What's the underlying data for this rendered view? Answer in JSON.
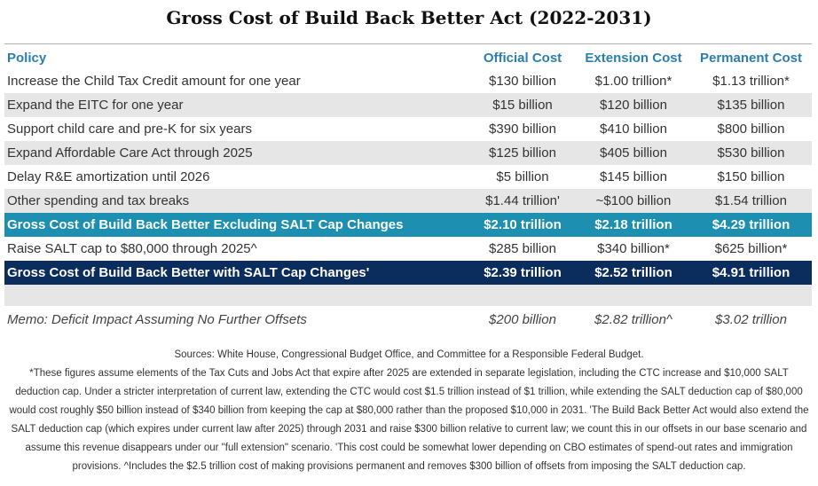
{
  "title": "Gross Cost of Build Back Better Act (2022-2031)",
  "headers": [
    "Policy",
    "Official Cost",
    "Extension Cost",
    "Permanent Cost"
  ],
  "rows": [
    {
      "style": "plain",
      "cells": [
        "Increase the Child Tax Credit amount for one year",
        "$130 billion",
        "$1.00 trillion*",
        "$1.13 trillion*"
      ]
    },
    {
      "style": "shade",
      "cells": [
        "Expand the EITC for one year",
        "$15 billion",
        "$120 billion",
        "$135 billion"
      ]
    },
    {
      "style": "plain",
      "cells": [
        "Support child care and pre-K for six years",
        "$390 billion",
        "$410 billion",
        "$800 billion"
      ]
    },
    {
      "style": "shade",
      "cells": [
        "Expand Affordable Care Act through 2025",
        "$125 billion",
        "$405 billion",
        "$530 billion"
      ]
    },
    {
      "style": "plain",
      "cells": [
        "Delay R&E amortization until 2026",
        "$5 billion",
        "$145 billion",
        "$150 billion"
      ]
    },
    {
      "style": "shade",
      "cells": [
        "Other spending and tax breaks",
        "$1.44 trillion'",
        "~$100 billion",
        "$1.54 trillion"
      ]
    },
    {
      "style": "teal",
      "cells": [
        "Gross Cost of Build Back Better Excluding SALT Cap Changes",
        "$2.10 trillion",
        "$2.18 trillion",
        "$4.29 trillion"
      ]
    },
    {
      "style": "plain",
      "cells": [
        "Raise SALT cap to $80,000 through 2025^",
        "$285 billion",
        "$340 billion*",
        "$625 billion*"
      ]
    },
    {
      "style": "navy",
      "cells": [
        "Gross Cost of Build Back Better with SALT Cap Changes'",
        "$2.39 trillion",
        "$2.52 trillion",
        "$4.91 trillion"
      ]
    }
  ],
  "memo": [
    "Memo: Deficit Impact Assuming No Further Offsets",
    "$200 billion",
    "$2.82 trillion^",
    "$3.02 trillion"
  ],
  "sources": "Sources: White House, Congressional Budget Office, and Committee for a Responsible Federal Budget.",
  "footnote": "*These figures assume elements of the Tax Cuts and Jobs Act that expire after 2025 are extended in separate legislation, including the CTC increase and $10,000 SALT deduction cap. Under a stricter interpretation of current law, extending the CTC would cost $1.5 trillion instead of $1 trillion, while extending the SALT deduction cap of $80,000 would cost roughly $50 billion instead of $340 billion from keeping the cap at $80,000 rather than the proposed $10,000 in 2031. 'The Build Back Better Act would also extend the SALT deduction cap (which expires under current law after 2025) through 2031 and raise $300 billion relative to current law; we count this in our offsets in our base scenario and assume this revenue disappears under our \"full extension\" scenario. 'This cost could be somewhat lower depending on CBO estimates of spend-out rates and immigration provisions. ^Includes the $2.5 trillion cost of making provisions permanent and removes $300 billion of offsets from imposing the SALT deduction cap.",
  "colors": {
    "header_text": "#2a7fb0",
    "teal_row": "#1d8fb1",
    "navy_row": "#0b2d5e",
    "shade_row": "#e6e6e6"
  }
}
